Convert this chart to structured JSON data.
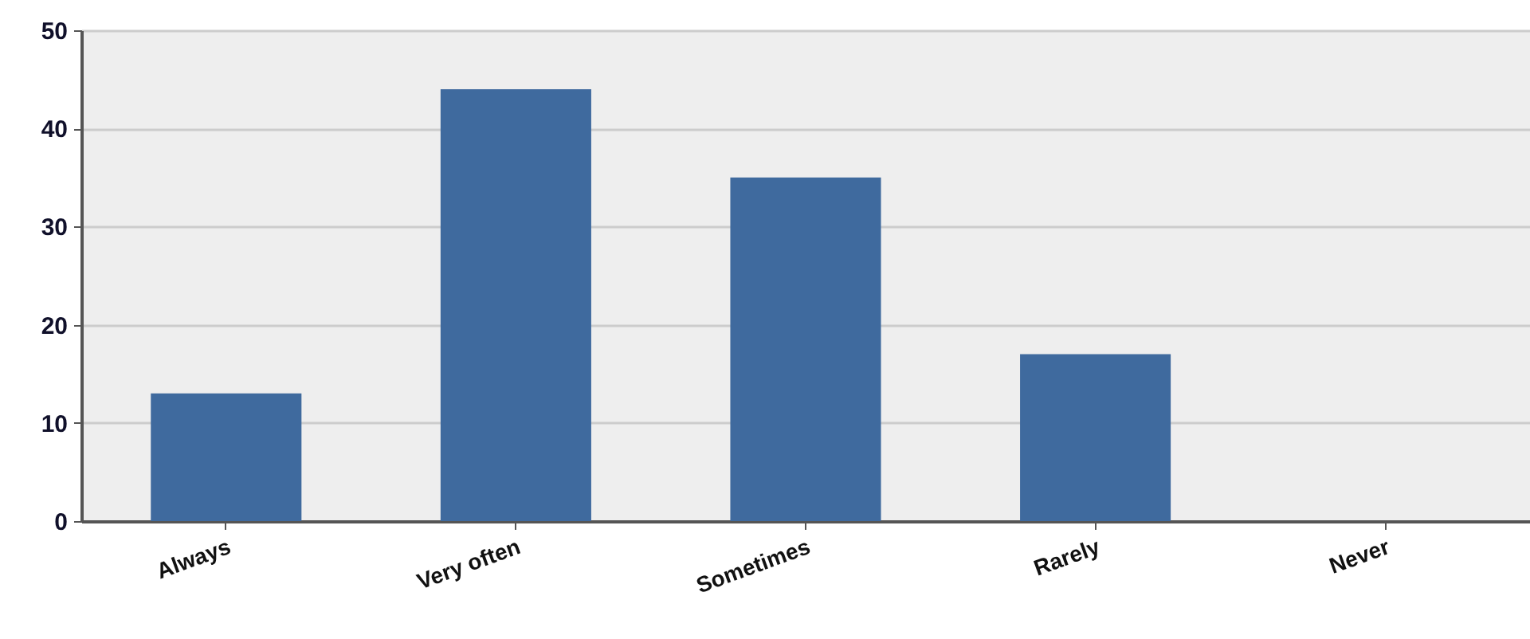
{
  "chart_data": {
    "type": "bar",
    "categories": [
      "Always",
      "Very often",
      "Sometimes",
      "Rarely",
      "Never"
    ],
    "values": [
      13,
      44,
      35,
      17,
      0
    ],
    "color": "#3f6a9e",
    "ylim": [
      0,
      50
    ],
    "yticks": [
      0,
      10,
      20,
      30,
      40,
      50
    ],
    "grid": "y"
  }
}
